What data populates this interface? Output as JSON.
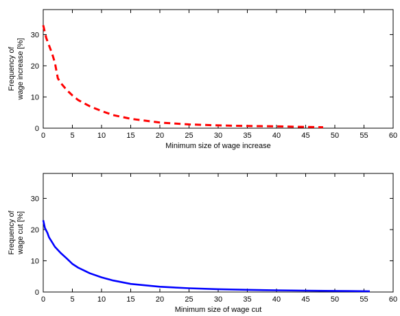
{
  "chart_data": [
    {
      "type": "line",
      "xlabel": "Minimum size of wage increase",
      "ylabel": [
        "Frequency of",
        "wage increase [%]"
      ],
      "xlim": [
        0,
        60
      ],
      "ylim": [
        0,
        38
      ],
      "xticks": [
        0,
        5,
        10,
        15,
        20,
        25,
        30,
        35,
        40,
        45,
        50,
        55,
        60
      ],
      "yticks": [
        0,
        10,
        20,
        30
      ],
      "grid": false,
      "series": [
        {
          "color": "#ff0000",
          "line_style": "dashed",
          "x": [
            0,
            0.5,
            1,
            1.5,
            2,
            2.5,
            3,
            4,
            5,
            6,
            8,
            10,
            12,
            15,
            20,
            25,
            30,
            35,
            40,
            45,
            48
          ],
          "y": [
            33,
            29,
            26.5,
            24,
            21,
            16,
            14.5,
            12.3,
            10.5,
            9,
            7,
            5.5,
            4.2,
            3,
            1.8,
            1.2,
            0.9,
            0.7,
            0.6,
            0.4,
            0.3
          ]
        }
      ]
    },
    {
      "type": "line",
      "xlabel": "Minimum size of wage cut",
      "ylabel": [
        "Frequency of",
        "wage cut [%]"
      ],
      "xlim": [
        0,
        60
      ],
      "ylim": [
        0,
        38
      ],
      "xticks": [
        0,
        5,
        10,
        15,
        20,
        25,
        30,
        35,
        40,
        45,
        50,
        55,
        60
      ],
      "yticks": [
        0,
        10,
        20,
        30
      ],
      "grid": false,
      "series": [
        {
          "color": "#0000ff",
          "line_style": "solid",
          "x": [
            0,
            0.3,
            0.7,
            1,
            1.5,
            2,
            3,
            4,
            5,
            6,
            8,
            10,
            12,
            15,
            20,
            25,
            30,
            35,
            40,
            45,
            50,
            56
          ],
          "y": [
            23,
            20.5,
            19,
            17.5,
            16,
            14.5,
            12.5,
            10.8,
            9,
            7.8,
            6,
            4.7,
            3.7,
            2.6,
            1.7,
            1.2,
            0.9,
            0.7,
            0.55,
            0.45,
            0.35,
            0.25
          ]
        }
      ]
    }
  ]
}
